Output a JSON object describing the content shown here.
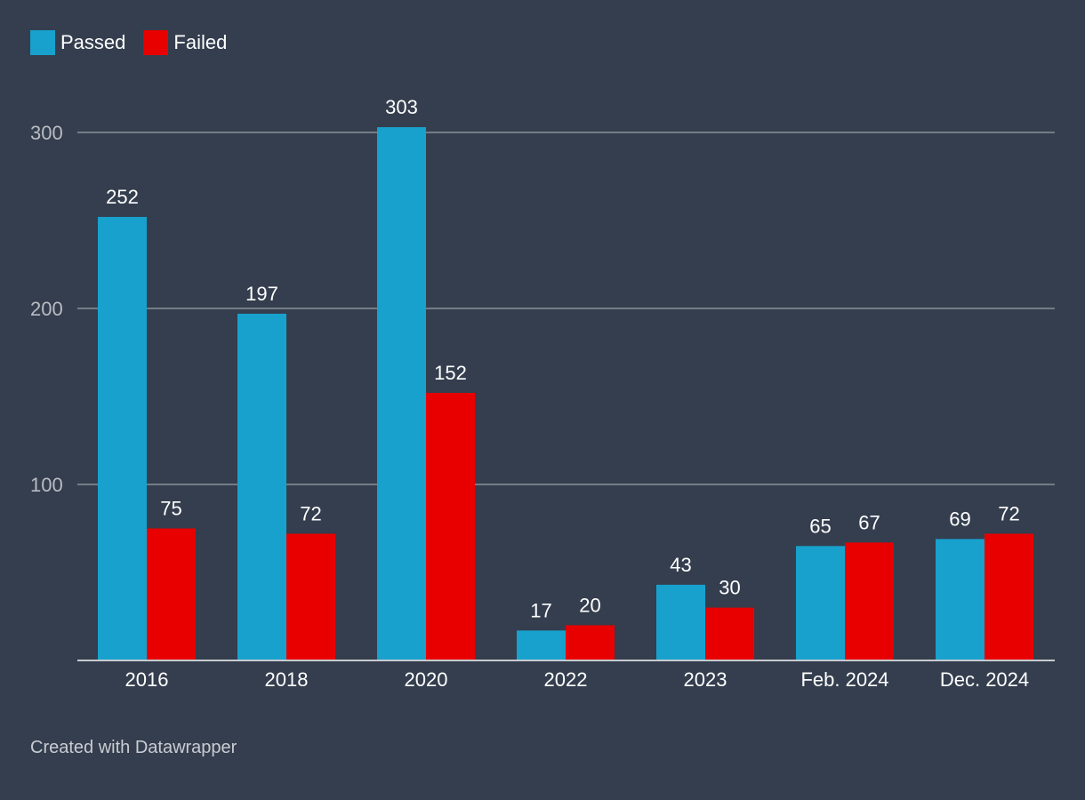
{
  "colors": {
    "background": "#343e4e",
    "passed": "#18a1cd",
    "failed": "#e80000",
    "gridline": "#8a8f97",
    "tick_label": "#b9bcc2",
    "text": "#ffffff"
  },
  "legend": {
    "items": [
      {
        "label": "Passed",
        "color": "#18a1cd"
      },
      {
        "label": "Failed",
        "color": "#e80000"
      }
    ]
  },
  "chart_data": {
    "type": "bar",
    "title": "",
    "xlabel": "",
    "ylabel": "",
    "categories": [
      "2016",
      "2018",
      "2020",
      "2022",
      "2023",
      "Feb. 2024",
      "Dec. 2024"
    ],
    "series": [
      {
        "name": "Passed",
        "color": "#18a1cd",
        "values": [
          252,
          197,
          303,
          17,
          43,
          65,
          69
        ]
      },
      {
        "name": "Failed",
        "color": "#e80000",
        "values": [
          75,
          72,
          152,
          20,
          30,
          67,
          72
        ]
      }
    ],
    "ylim": [
      0,
      300
    ],
    "yticks": [
      100,
      200,
      300
    ],
    "grid": true,
    "legend_position": "top-left"
  },
  "footer": {
    "credit": "Created with Datawrapper"
  }
}
